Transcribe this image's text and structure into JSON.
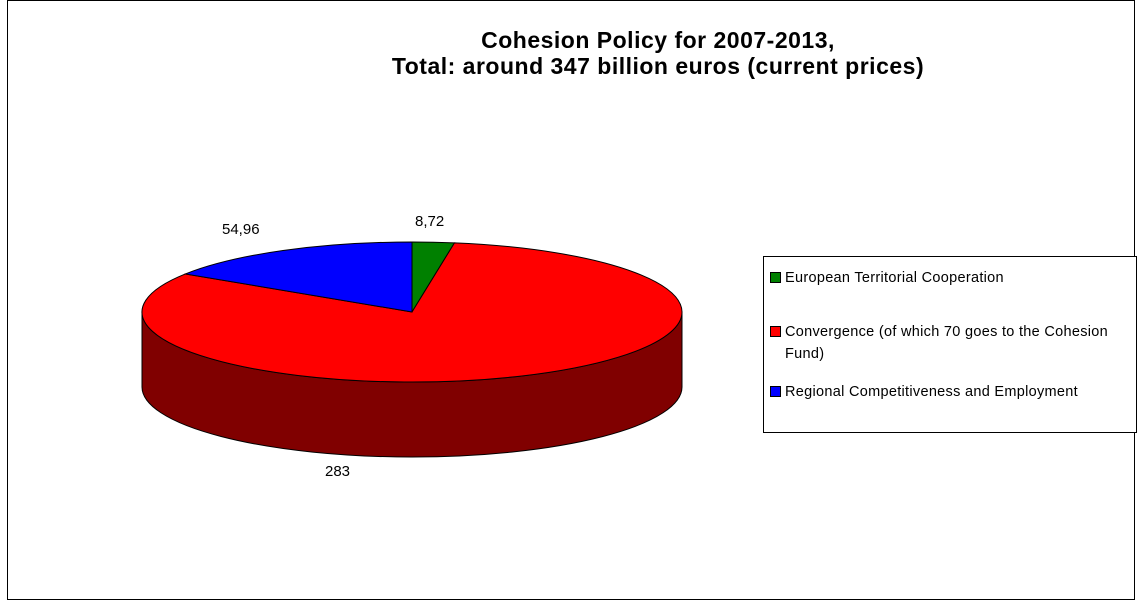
{
  "chart_data": {
    "type": "pie",
    "title": "Cohesion Policy for 2007-2013,",
    "subtitle": "Total: around 347 billion euros (current prices)",
    "categories": [
      "European Territorial Cooperation",
      "Convergence (of which 70 goes to the Cohesion Fund)",
      "Regional Competitiveness and Employment"
    ],
    "values": [
      8.72,
      283,
      54.96
    ],
    "data_labels": [
      "8,72",
      "283",
      "54,96"
    ],
    "colors": [
      "#008000",
      "#ff0000",
      "#0000ff"
    ],
    "side_colors": [
      "#004000",
      "#800000",
      "#000080"
    ],
    "legend": "right",
    "style": "3d"
  }
}
